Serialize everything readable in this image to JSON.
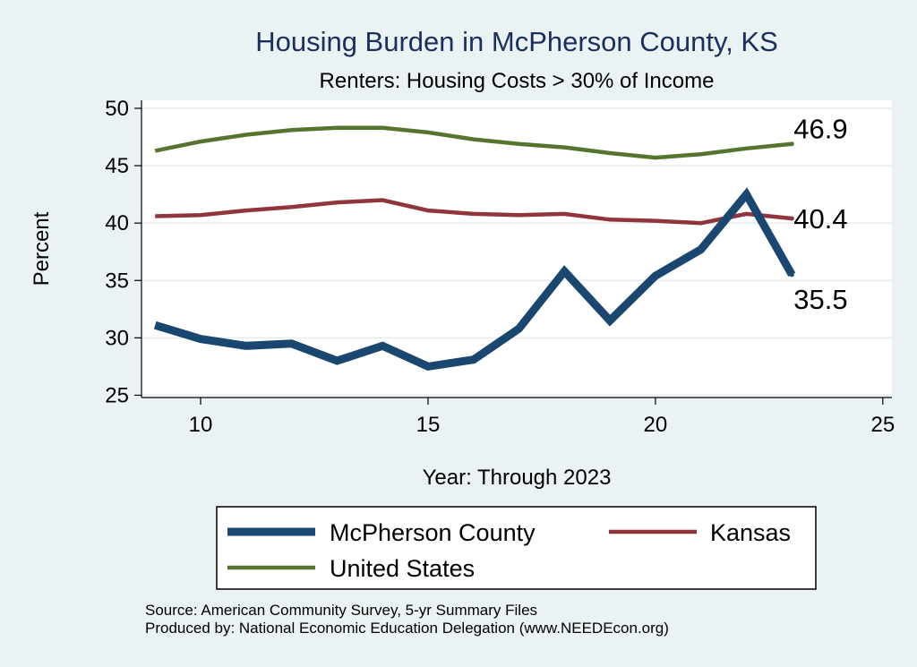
{
  "chart_data": {
    "type": "line",
    "title": "Housing Burden in McPherson County, KS",
    "subtitle": "Renters: Housing Costs > 30% of Income",
    "xlabel": "Year: Through 2023",
    "ylabel": "Percent",
    "xlim": [
      8.7,
      25.2
    ],
    "ylim": [
      24.8,
      50.7
    ],
    "xticks": [
      10,
      15,
      20,
      25
    ],
    "yticks": [
      25,
      30,
      35,
      40,
      45,
      50
    ],
    "grid": true,
    "legend_position": "bottom",
    "x": [
      9,
      10,
      11,
      12,
      13,
      14,
      15,
      16,
      17,
      18,
      19,
      20,
      21,
      22,
      23
    ],
    "series": [
      {
        "name": "McPherson County",
        "color": "#1a476f",
        "width": "thick",
        "values": [
          31.1,
          29.9,
          29.3,
          29.5,
          28.0,
          29.3,
          27.5,
          28.1,
          30.8,
          35.8,
          31.5,
          35.4,
          37.7,
          42.5,
          35.5
        ],
        "end_label": "35.5"
      },
      {
        "name": "Kansas",
        "color": "#90353b",
        "width": "medium",
        "values": [
          40.6,
          40.7,
          41.1,
          41.4,
          41.8,
          42.0,
          41.1,
          40.8,
          40.7,
          40.8,
          40.3,
          40.2,
          40.0,
          40.8,
          40.4
        ],
        "end_label": "40.4"
      },
      {
        "name": "United States",
        "color": "#55752f",
        "width": "medium",
        "values": [
          46.3,
          47.1,
          47.7,
          48.1,
          48.3,
          48.3,
          47.9,
          47.3,
          46.9,
          46.6,
          46.1,
          45.7,
          46.0,
          46.5,
          46.9
        ],
        "end_label": "46.9"
      }
    ],
    "source_lines": [
      "Source: American Community Survey, 5-yr Summary Files",
      "Produced by: National Economic Education Delegation (www.NEEDEcon.org)"
    ]
  }
}
